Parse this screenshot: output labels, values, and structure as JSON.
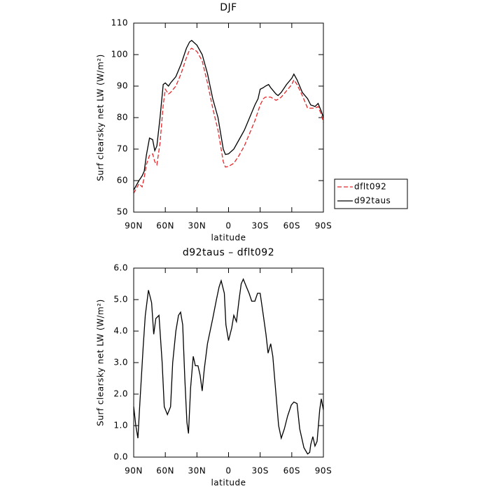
{
  "chart_data": [
    {
      "type": "line",
      "title": "DJF",
      "ylabel": "Surf clearsky net LW (W/m²)",
      "xlabel": "latitude",
      "x": [
        90,
        85,
        82,
        80,
        78,
        75,
        72,
        70,
        68,
        65,
        62,
        60,
        57,
        55,
        50,
        45,
        40,
        37,
        35,
        30,
        25,
        20,
        15,
        10,
        7,
        5,
        3,
        0,
        -5,
        -10,
        -15,
        -20,
        -25,
        -28,
        -30,
        -33,
        -35,
        -38,
        -40,
        -45,
        -47,
        -50,
        -55,
        -60,
        -62,
        -65,
        -70,
        -75,
        -78,
        -80,
        -82,
        -85,
        -88,
        -90
      ],
      "series": [
        {
          "name": "dflt092",
          "color": "#e8262a",
          "dash": "dashed",
          "values": [
            56,
            59,
            58,
            61,
            65,
            68,
            68.5,
            66,
            65,
            72,
            84,
            89,
            87.5,
            88,
            90,
            94,
            99,
            101.5,
            102,
            101,
            98,
            91,
            83,
            76,
            70,
            66,
            64.3,
            64.5,
            65.5,
            68,
            71,
            75,
            79,
            82,
            84,
            86,
            86.5,
            86.5,
            86.5,
            85.5,
            85.8,
            86.5,
            88.5,
            90.5,
            92,
            90.5,
            87,
            83,
            83,
            83,
            83,
            83.5,
            81,
            78.5
          ]
        },
        {
          "name": "d92taus",
          "color": "#000000",
          "dash": "solid",
          "values": [
            57,
            60,
            61.5,
            63,
            68,
            73.5,
            73,
            69.5,
            71,
            80,
            90.5,
            91,
            90,
            91,
            93,
            97,
            102,
            104,
            104.5,
            103,
            100,
            94,
            86,
            80,
            74,
            70,
            68.3,
            68.5,
            70,
            73,
            76,
            80,
            84,
            86,
            89,
            89.5,
            90,
            90.5,
            89.5,
            87.5,
            87,
            88,
            90.5,
            92.5,
            93.8,
            92,
            88,
            86,
            84,
            83.8,
            83.5,
            84.5,
            82,
            80
          ]
        }
      ],
      "xlim": [
        90,
        -90
      ],
      "xticks": [
        {
          "value": 90,
          "label": "90N"
        },
        {
          "value": 60,
          "label": "60N"
        },
        {
          "value": 30,
          "label": "30N"
        },
        0,
        {
          "value": -30,
          "label": "30S"
        },
        {
          "value": -60,
          "label": "60S"
        },
        {
          "value": -90,
          "label": "90S"
        }
      ],
      "ylim": [
        50,
        110
      ],
      "yticks": [
        50,
        60,
        70,
        80,
        90,
        100,
        110
      ],
      "legend": "outside-right"
    },
    {
      "type": "line",
      "title": "d92taus – dflt092",
      "ylabel": "Surf clearsky net LW (W/m²)",
      "xlabel": "latitude",
      "x": [
        90,
        88,
        86,
        84,
        81,
        79,
        76,
        73,
        71,
        69,
        66,
        63,
        61,
        58,
        55,
        53,
        50,
        47.5,
        45.5,
        43.5,
        41.5,
        39.5,
        38,
        36,
        33.5,
        31.5,
        29,
        27,
        25,
        23,
        20,
        17.5,
        15,
        11.5,
        9,
        7,
        4,
        2.5,
        0,
        -3,
        -5,
        -7.5,
        -10,
        -12,
        -14,
        -17,
        -19.5,
        -22,
        -25,
        -27.5,
        -30,
        -33,
        -35.5,
        -37.5,
        -40,
        -42,
        -45,
        -47.5,
        -50,
        -53,
        -56,
        -59.5,
        -62,
        -65,
        -67.5,
        -71.5,
        -75,
        -77,
        -78,
        -80,
        -82,
        -84,
        -86.5,
        -88,
        -90
      ],
      "series": [
        {
          "color": "#000000",
          "dash": "solid",
          "values": [
            1.6,
            1.0,
            0.6,
            1.8,
            3.5,
            4.5,
            5.3,
            4.9,
            3.9,
            4.4,
            4.5,
            3.0,
            1.6,
            1.35,
            1.6,
            3.0,
            4.0,
            4.5,
            4.6,
            4.2,
            2.5,
            1.1,
            0.75,
            2.2,
            3.2,
            2.9,
            2.9,
            2.6,
            2.1,
            2.8,
            3.6,
            4.0,
            4.4,
            5.0,
            5.4,
            5.6,
            5.2,
            4.2,
            3.7,
            4.1,
            4.5,
            4.3,
            5.0,
            5.5,
            5.65,
            5.4,
            5.2,
            4.95,
            4.95,
            5.2,
            5.2,
            4.5,
            3.9,
            3.3,
            3.6,
            3.2,
            2.0,
            1.0,
            0.6,
            0.9,
            1.3,
            1.65,
            1.75,
            1.7,
            0.9,
            0.3,
            0.1,
            0.15,
            0.4,
            0.65,
            0.35,
            0.5,
            1.5,
            1.85,
            1.5
          ]
        }
      ],
      "xlim": [
        90,
        -90
      ],
      "xticks": [
        {
          "value": 90,
          "label": "90N"
        },
        {
          "value": 60,
          "label": "60N"
        },
        {
          "value": 30,
          "label": "30N"
        },
        0,
        {
          "value": -30,
          "label": "30S"
        },
        {
          "value": -60,
          "label": "60S"
        },
        {
          "value": -90,
          "label": "90S"
        }
      ],
      "ylim": [
        0,
        6
      ],
      "yticks": [
        {
          "value": 0,
          "label": "0.0"
        },
        {
          "value": 1,
          "label": "1.0"
        },
        {
          "value": 2,
          "label": "2.0"
        },
        {
          "value": 3,
          "label": "3.0"
        },
        {
          "value": 4,
          "label": "4.0"
        },
        {
          "value": 5,
          "label": "5.0"
        },
        {
          "value": 6,
          "label": "6.0"
        }
      ]
    }
  ]
}
